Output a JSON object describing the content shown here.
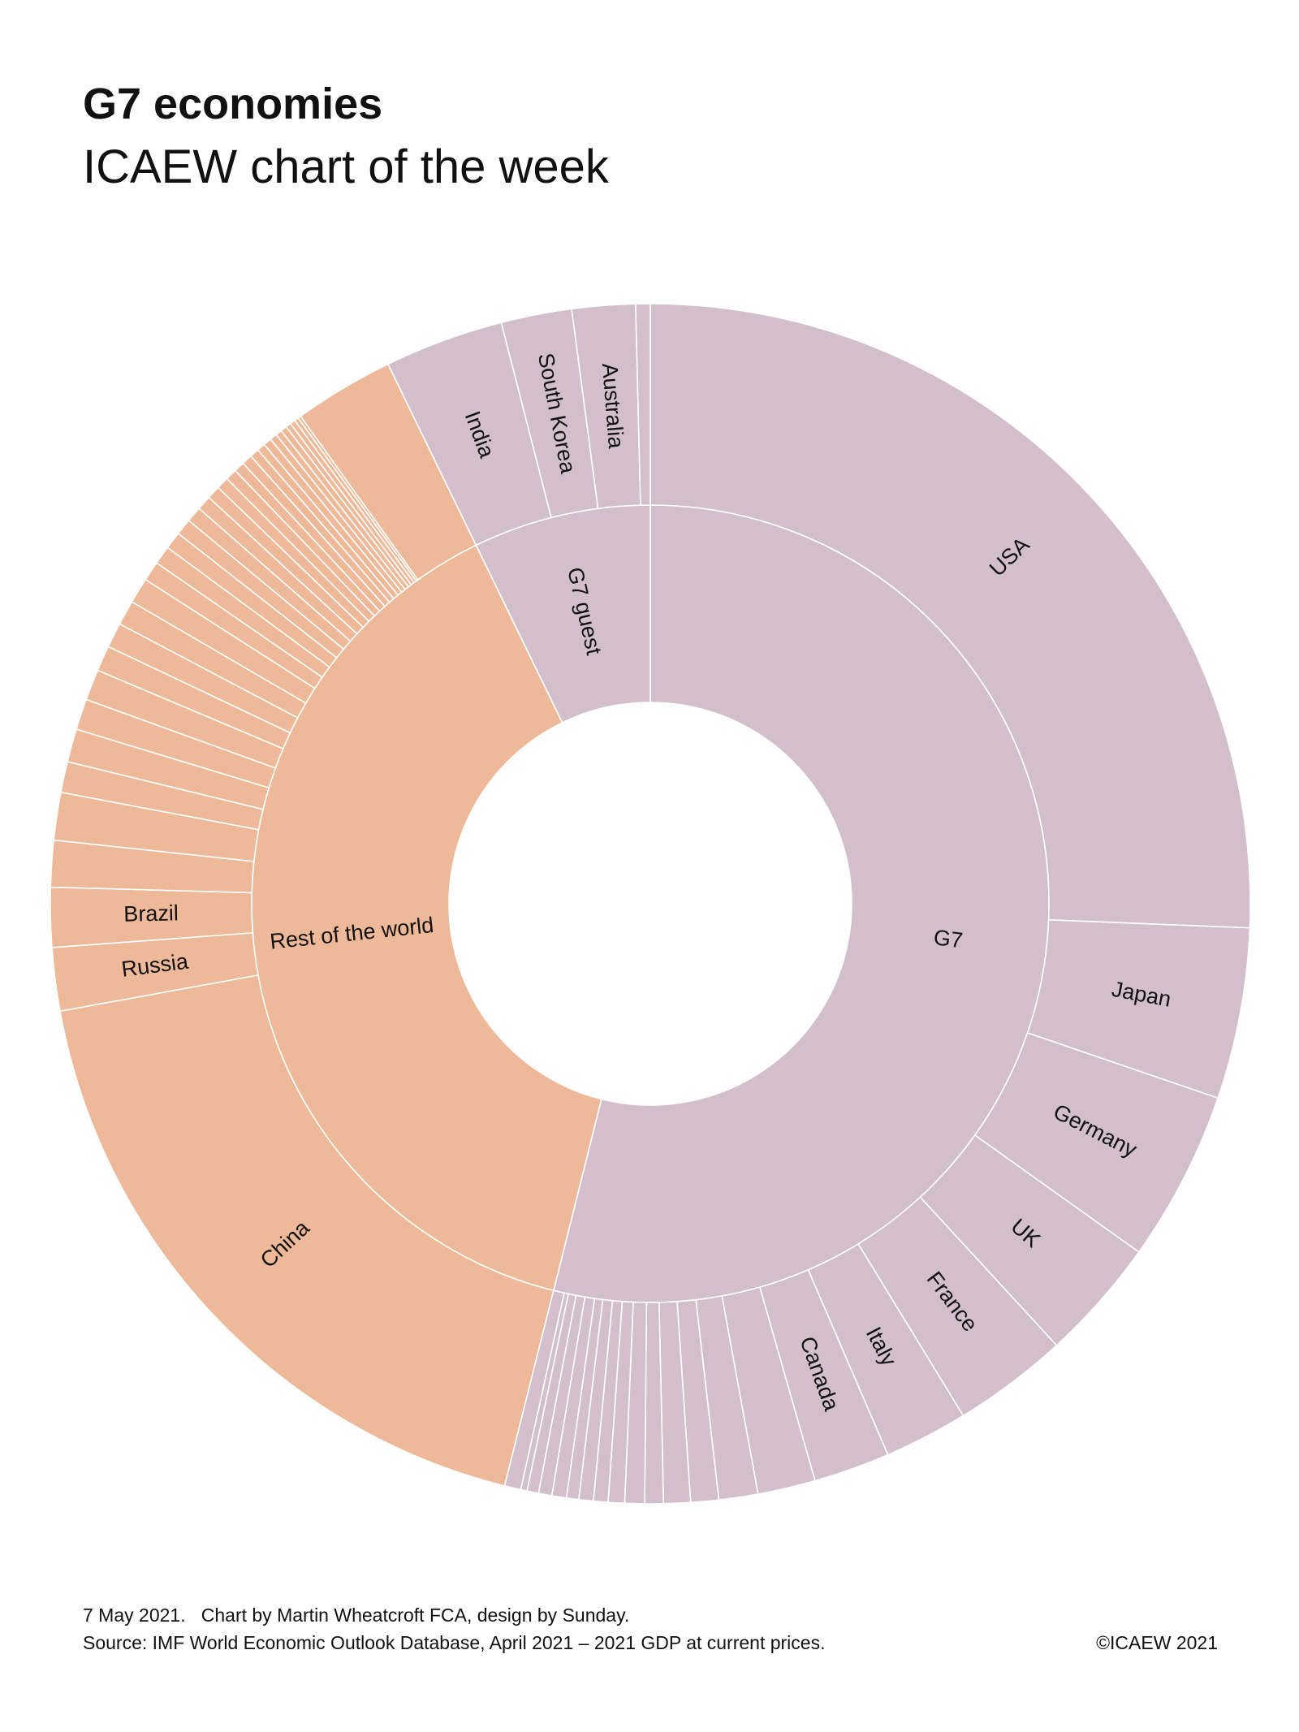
{
  "chart_data": {
    "type": "sunburst",
    "title": "G7 economies",
    "subtitle": "ICAEW chart of the week",
    "footnote": "7 May 2021.   Chart by Martin Wheatcroft FCA, design by Sunday.",
    "source": "Source: IMF World Economic Outlook Database, April 2021 – 2021 GDP at current prices.",
    "copyright": "©ICAEW 2021",
    "groups": [
      {
        "name": "G7",
        "color": "#d3bfcb",
        "value": 53.9,
        "children": {
          "categories": [
            "USA",
            "Japan",
            "Germany",
            "UK",
            "France",
            "Italy",
            "Canada",
            null,
            null,
            null,
            null,
            null,
            null,
            null,
            null,
            null,
            null,
            null,
            null,
            null,
            null,
            null
          ],
          "values": [
            25.6,
            4.6,
            4.6,
            3.3,
            3.1,
            2.25,
            2.05,
            1.55,
            1.05,
            0.75,
            0.72,
            0.5,
            0.53,
            0.44,
            0.39,
            0.39,
            0.33,
            0.39,
            0.36,
            0.31,
            0.17,
            0.44
          ]
        }
      },
      {
        "name": "Rest of the world",
        "color": "#eeb998",
        "value": 38.9,
        "children": {
          "categories": [
            "China",
            "Russia",
            "Brazil",
            null,
            null,
            null,
            null,
            null,
            null,
            null,
            null,
            null,
            null,
            null,
            null,
            null,
            null,
            null,
            null,
            null,
            null,
            null,
            null,
            null,
            null,
            null,
            null,
            null,
            null,
            null,
            null,
            null,
            null,
            null,
            null
          ],
          "values": [
            18.2,
            1.7,
            1.6,
            1.25,
            1.28,
            0.83,
            0.89,
            0.83,
            0.83,
            0.69,
            0.67,
            0.67,
            0.69,
            0.53,
            0.5,
            0.47,
            0.44,
            0.42,
            0.39,
            0.36,
            0.33,
            0.31,
            0.28,
            0.28,
            0.25,
            0.22,
            0.22,
            0.19,
            0.17,
            0.17,
            0.14,
            0.14,
            0.11,
            0.08,
            2.7
          ]
        }
      },
      {
        "name": "G7 guest",
        "color": "#d3bfcb",
        "value": 7.2,
        "children": {
          "categories": [
            "India",
            "South Korea",
            "Australia",
            null
          ],
          "values": [
            3.2,
            1.9,
            1.7,
            0.39
          ]
        }
      }
    ]
  }
}
